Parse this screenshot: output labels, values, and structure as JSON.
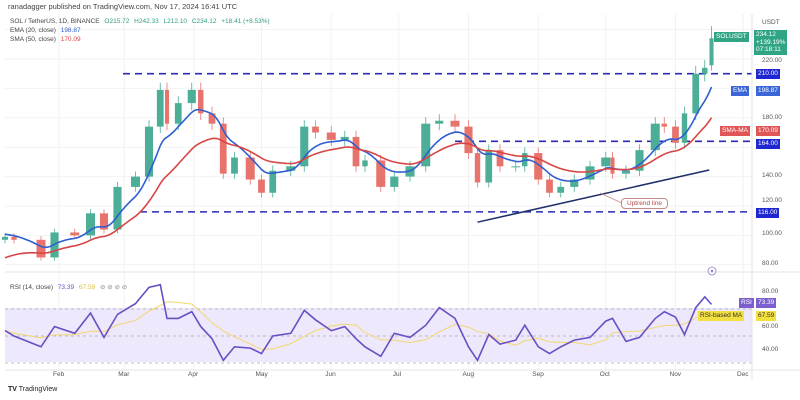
{
  "header": {
    "published": "ranadagger published on TradingView.com, Nov 17, 2024 16:41 UTC"
  },
  "legend": {
    "symbol": "SOL / TetherUS, 1D, BINANCE",
    "open": "O215.72",
    "high": "H242.33",
    "low": "L212.10",
    "close": "C234.12",
    "change": "+18.41 (+8.53%)",
    "ema_label": "EMA (20, close)",
    "ema_value": "198.87",
    "sma_label": "SMA (50, close)",
    "sma_value": "170.09",
    "rsi_label": "RSI (14, close)",
    "rsi_value": "73.39",
    "rsi_ma_value": "67.59"
  },
  "price_axis": {
    "currency": "USDT",
    "ticks": [
      "220.00",
      "180.00",
      "140.00",
      "120.00",
      "100.00",
      "80.00"
    ]
  },
  "rsi_axis": {
    "ticks": [
      "80.00",
      "60.00",
      "40.00"
    ]
  },
  "time_axis": {
    "ticks": [
      "Feb",
      "Mar",
      "Apr",
      "May",
      "Jun",
      "Jul",
      "Aug",
      "Sep",
      "Oct",
      "Nov",
      "Dec"
    ]
  },
  "tags": {
    "symbol_tag": "SOLUSDT",
    "last_price": "234.12",
    "last_change": "+139.19%",
    "countdown": "07:18:11",
    "level_210": "210.00",
    "ema_tag": "EMA",
    "ema_val": "198.87",
    "sma_tag": "SMA-MA",
    "sma_val": "170.09",
    "level_164": "164.00",
    "level_116": "116.00",
    "rsi_tag": "RSI",
    "rsi_val": "73.39",
    "rsi_ma_tag": "RSI-based MA",
    "rsi_ma_val": "67.59"
  },
  "annotations": {
    "uptrend": "Uptrend line"
  },
  "branding": {
    "logo": "TradingView"
  },
  "colors": {
    "up": "#4cae96",
    "down": "#e8736c",
    "ema": "#2f5fd0",
    "sma": "#d84545",
    "level": "#2a2ab0",
    "rsi": "#6a4fc4",
    "rsi_ma": "#f0d870",
    "trend": "#1f2f6a"
  },
  "chart_data": {
    "type": "candlestick",
    "title": "SOL / TetherUS, 1D, BINANCE",
    "ylim": [
      75,
      245
    ],
    "grid": true,
    "last_candle": {
      "open": 215.72,
      "high": 242.33,
      "low": 212.1,
      "close": 234.12
    },
    "dates": [
      "2024-01-08",
      "2024-01-12",
      "2024-01-24",
      "2024-01-30",
      "2024-02-08",
      "2024-02-15",
      "2024-02-21",
      "2024-02-27",
      "2024-03-06",
      "2024-03-12",
      "2024-03-17",
      "2024-03-20",
      "2024-03-25",
      "2024-03-31",
      "2024-04-04",
      "2024-04-09",
      "2024-04-14",
      "2024-04-19",
      "2024-04-26",
      "2024-05-01",
      "2024-05-06",
      "2024-05-14",
      "2024-05-20",
      "2024-05-25",
      "2024-06-01",
      "2024-06-07",
      "2024-06-12",
      "2024-06-16",
      "2024-06-23",
      "2024-06-29",
      "2024-07-06",
      "2024-07-13",
      "2024-07-19",
      "2024-07-26",
      "2024-08-01",
      "2024-08-05",
      "2024-08-10",
      "2024-08-15",
      "2024-08-22",
      "2024-08-26",
      "2024-09-01",
      "2024-09-06",
      "2024-09-11",
      "2024-09-17",
      "2024-09-24",
      "2024-10-01",
      "2024-10-04",
      "2024-10-10",
      "2024-10-16",
      "2024-10-23",
      "2024-10-27",
      "2024-11-01",
      "2024-11-05",
      "2024-11-10",
      "2024-11-14",
      "2024-11-17"
    ],
    "close": [
      99,
      97,
      85,
      102,
      100,
      115,
      104,
      133,
      140,
      174,
      199,
      176,
      190,
      199,
      183,
      176,
      142,
      153,
      138,
      129,
      144,
      147,
      174,
      170,
      165,
      167,
      147,
      151,
      133,
      140,
      147,
      176,
      178,
      174,
      156,
      136,
      158,
      147,
      147,
      156,
      138,
      129,
      133,
      138,
      147,
      153,
      142,
      144,
      158,
      176,
      174,
      163,
      183,
      210,
      214,
      234.12
    ],
    "rsi": [
      54,
      50,
      42,
      57,
      52,
      67,
      49,
      66,
      74,
      86,
      88,
      63,
      63,
      68,
      57,
      48,
      32,
      42,
      41,
      37,
      50,
      52,
      69,
      62,
      54,
      57,
      48,
      42,
      35,
      52,
      49,
      58,
      71,
      63,
      42,
      32,
      51,
      44,
      47,
      58,
      42,
      37,
      42,
      47,
      49,
      61,
      63,
      46,
      49,
      63,
      68,
      64,
      51,
      71,
      79,
      73.39
    ],
    "levels": [
      210,
      164,
      116
    ],
    "uptrend_line": {
      "from": {
        "date": "2024-08-05",
        "price": 109
      },
      "to": {
        "date": "2024-11-16",
        "price": 144.5
      }
    },
    "rsi_bands": [
      70,
      50,
      30
    ]
  }
}
